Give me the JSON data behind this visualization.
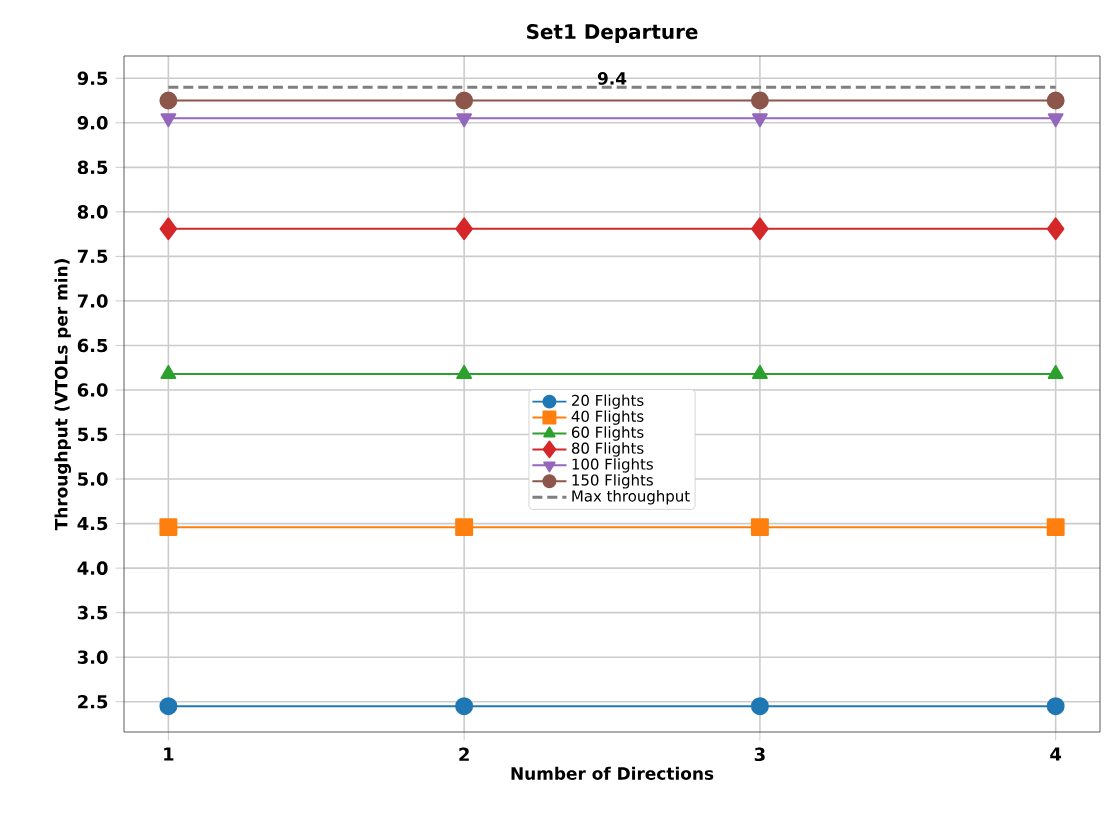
{
  "chart_data": {
    "type": "line",
    "title": "Set1 Departure",
    "xlabel": "Number of Directions",
    "ylabel": "Throughput (VTOLs per min)",
    "x": [
      1,
      2,
      3,
      4
    ],
    "series": [
      {
        "name": "20 Flights",
        "color": "#1f77b4",
        "marker": "circle",
        "values": [
          2.45,
          2.45,
          2.45,
          2.45
        ]
      },
      {
        "name": "40 Flights",
        "color": "#ff7f0e",
        "marker": "square",
        "values": [
          4.46,
          4.46,
          4.46,
          4.46
        ]
      },
      {
        "name": "60 Flights",
        "color": "#2ca02c",
        "marker": "triangle",
        "values": [
          6.18,
          6.18,
          6.18,
          6.18
        ]
      },
      {
        "name": "80 Flights",
        "color": "#d62728",
        "marker": "diamond",
        "values": [
          7.81,
          7.81,
          7.81,
          7.81
        ]
      },
      {
        "name": "100 Flights",
        "color": "#9467bd",
        "marker": "triangle_down",
        "values": [
          9.05,
          9.05,
          9.05,
          9.05
        ]
      },
      {
        "name": "150 Flights",
        "color": "#8c564b",
        "marker": "circle",
        "values": [
          9.25,
          9.25,
          9.25,
          9.25
        ]
      },
      {
        "name": "Max throughput",
        "color": "#7f7f7f",
        "marker": "none",
        "line_style": "dashed",
        "values": [
          9.4,
          9.4,
          9.4,
          9.4
        ]
      }
    ],
    "annotations": [
      {
        "text": "9.4",
        "x": 2.5,
        "y": 9.4
      }
    ],
    "xlim": [
      0.85,
      4.15
    ],
    "ylim": [
      2.16,
      9.75
    ],
    "xticks": [
      1,
      2,
      3,
      4
    ],
    "yticks": [
      2.5,
      {
        "value": 3,
        "label": "3.0"
      },
      3.5,
      {
        "value": 4,
        "label": "4.0"
      },
      4.5,
      {
        "value": 5,
        "label": "5.0"
      },
      5.5,
      {
        "value": 6,
        "label": "6.0"
      },
      6.5,
      {
        "value": 7,
        "label": "7.0"
      },
      7.5,
      {
        "value": 8,
        "label": "8.0"
      },
      8.5,
      {
        "value": 9,
        "label": "9.0"
      },
      9.5
    ],
    "grid": true,
    "legend": "center"
  }
}
